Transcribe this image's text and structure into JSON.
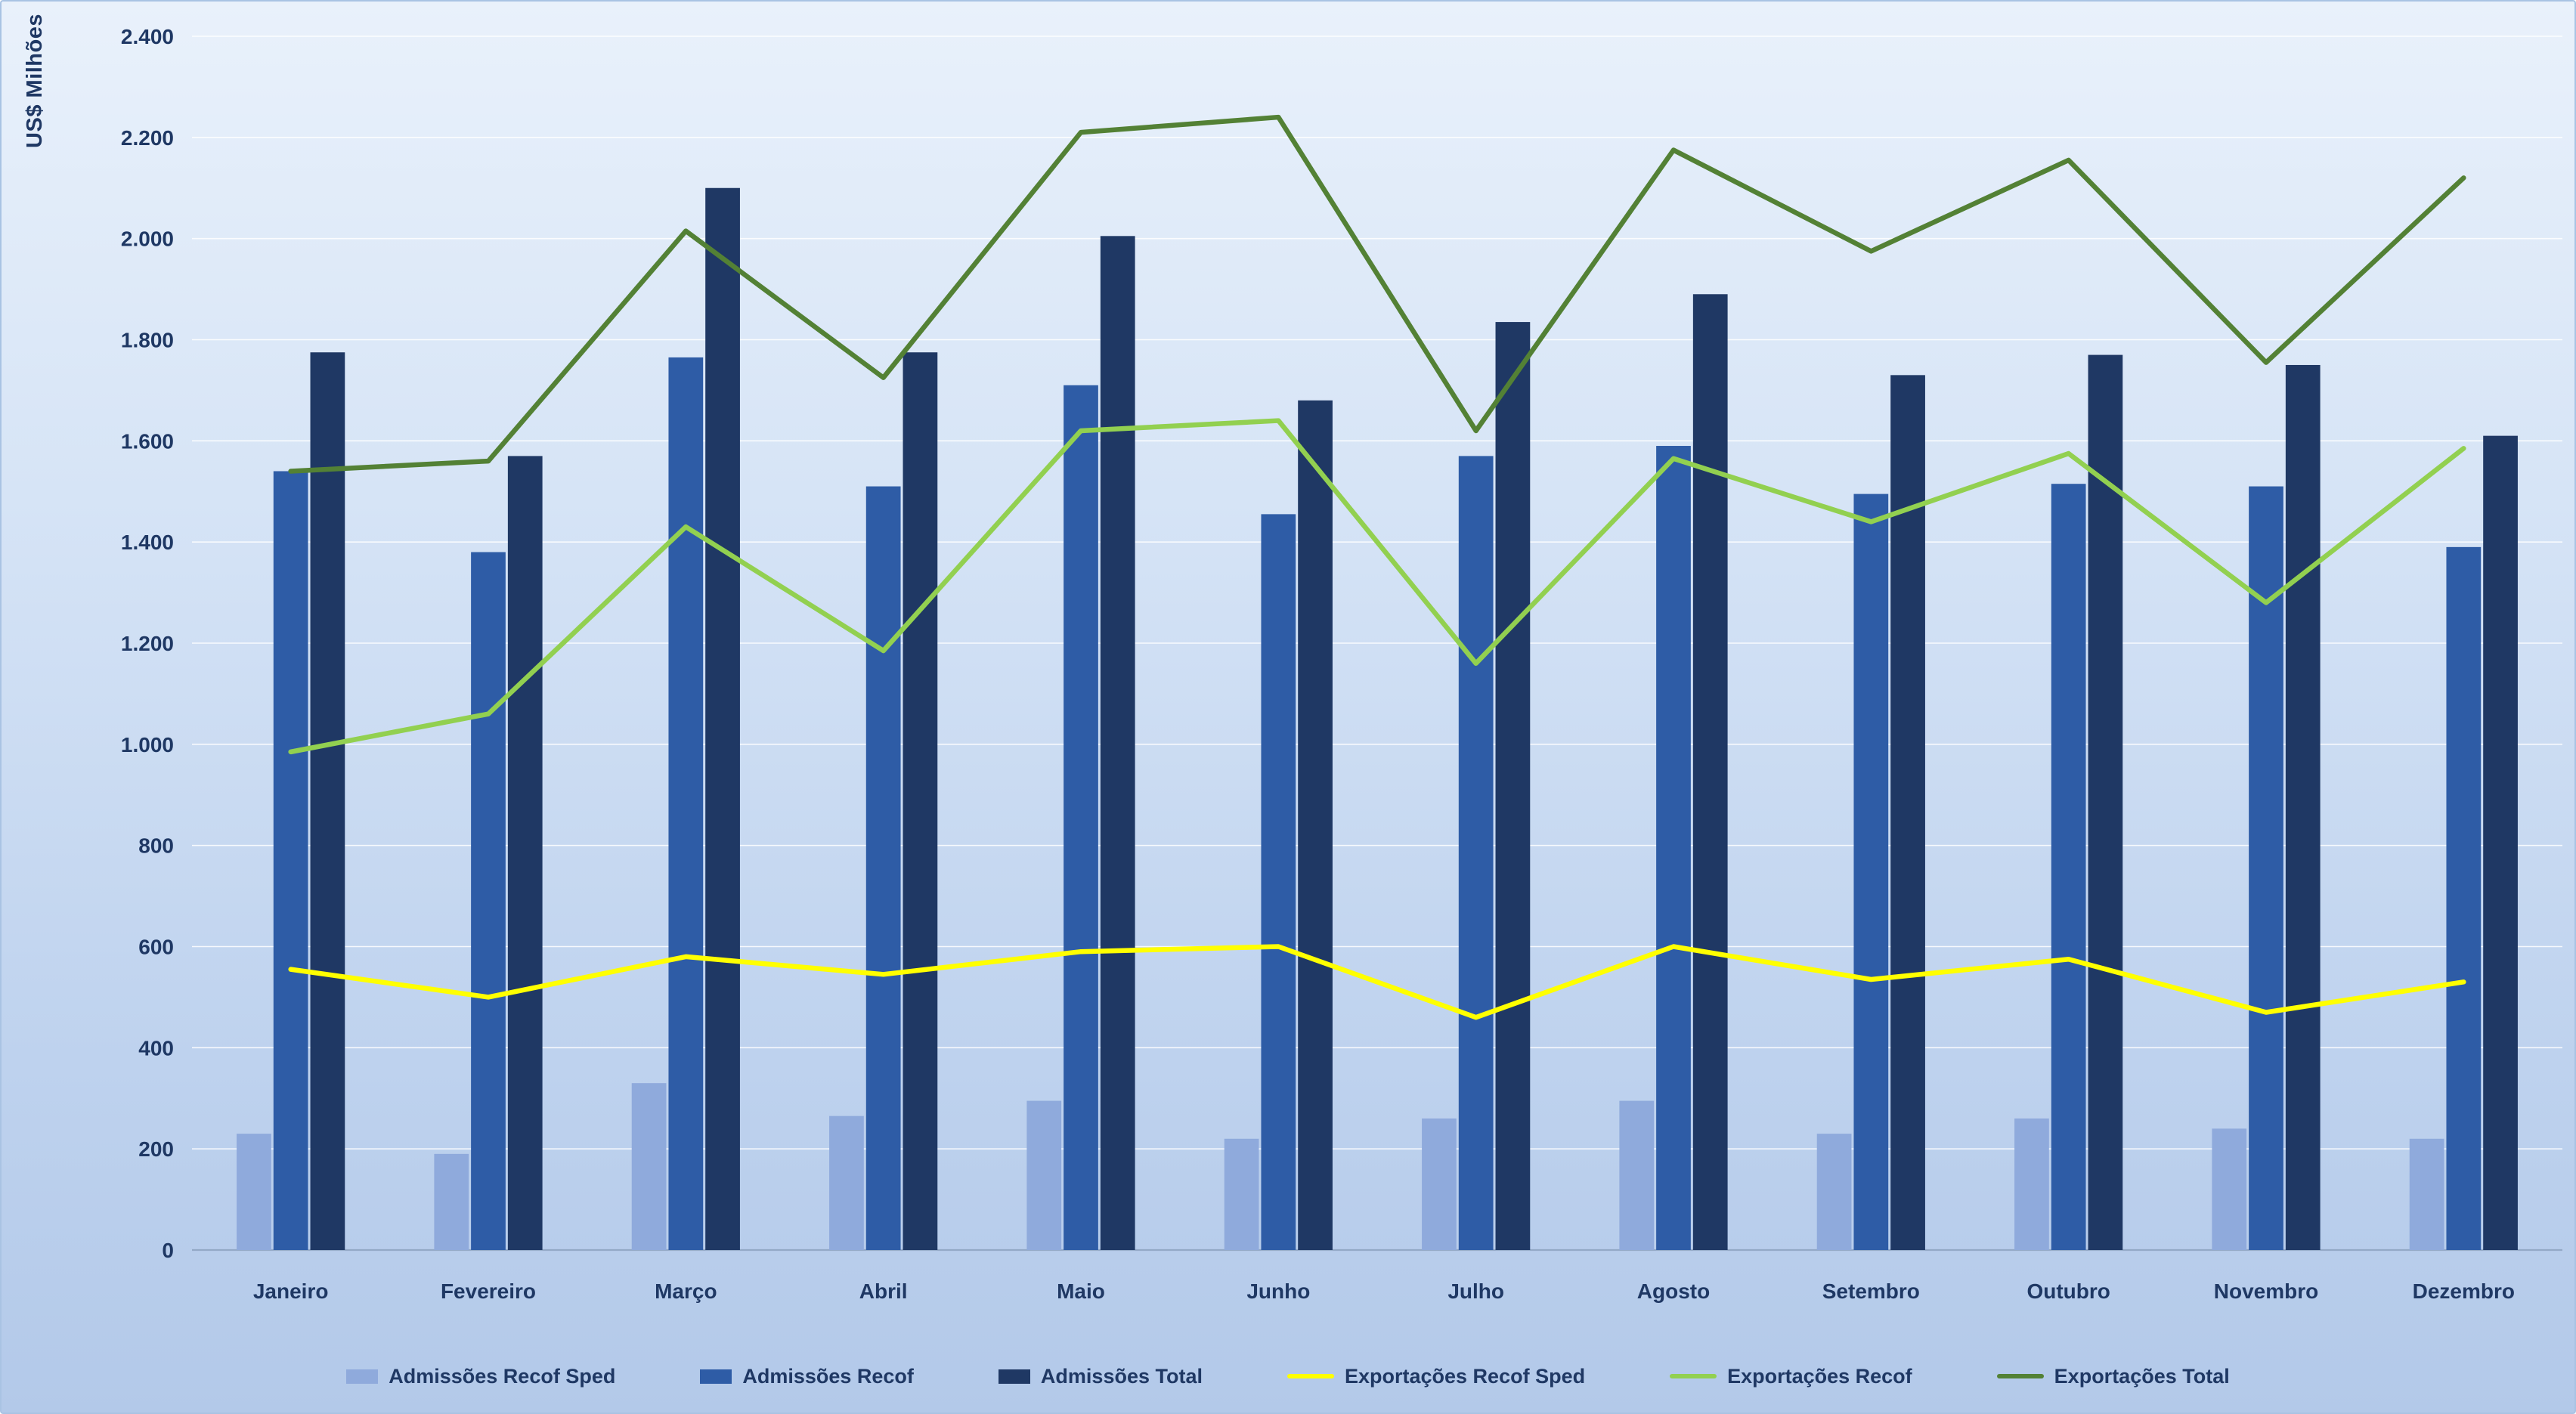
{
  "chart_data": {
    "type": "bar+line",
    "title": "",
    "xlabel": "",
    "ylabel": "US$ Milhões",
    "grid": true,
    "legend_position": "bottom",
    "categories": [
      "Janeiro",
      "Fevereiro",
      "Março",
      "Abril",
      "Maio",
      "Junho",
      "Julho",
      "Agosto",
      "Setembro",
      "Outubro",
      "Novembro",
      "Dezembro"
    ],
    "y_axis": {
      "min": 0,
      "max": 2400,
      "tick_step": 200,
      "tick_labels": [
        "0",
        "200",
        "400",
        "600",
        "800",
        "1.000",
        "1.200",
        "1.400",
        "1.600",
        "1.800",
        "2.000",
        "2.200",
        "2.400"
      ]
    },
    "series": [
      {
        "name": "Admissões Recof Sped",
        "key": "admissoes-recof-sped",
        "type": "bar",
        "color": "#8faadc",
        "values": [
          230,
          190,
          330,
          265,
          295,
          220,
          260,
          295,
          230,
          260,
          240,
          220
        ]
      },
      {
        "name": "Admissões Recof",
        "key": "admissoes-recof",
        "type": "bar",
        "color": "#2e5ca6",
        "values": [
          1540,
          1380,
          1765,
          1510,
          1710,
          1455,
          1570,
          1590,
          1495,
          1515,
          1510,
          1390
        ]
      },
      {
        "name": "Admissões Total",
        "key": "admissoes-total",
        "type": "bar",
        "color": "#1f3864",
        "values": [
          1775,
          1570,
          2100,
          1775,
          2005,
          1680,
          1835,
          1890,
          1730,
          1770,
          1750,
          1610
        ]
      },
      {
        "name": "Exportações Recof Sped",
        "key": "exportacoes-recof-sped",
        "type": "line",
        "color": "#ffff00",
        "values": [
          555,
          500,
          580,
          545,
          590,
          600,
          460,
          600,
          535,
          575,
          470,
          530
        ]
      },
      {
        "name": "Exportações Recof",
        "key": "exportacoes-recof",
        "type": "line",
        "color": "#92d050",
        "values": [
          985,
          1060,
          1430,
          1185,
          1620,
          1640,
          1160,
          1565,
          1440,
          1575,
          1280,
          1585
        ]
      },
      {
        "name": "Exportações Total",
        "key": "exportacoes-total",
        "type": "line",
        "color": "#538135",
        "values": [
          1540,
          1560,
          2015,
          1725,
          2210,
          2240,
          1620,
          2175,
          1975,
          2155,
          1755,
          2120
        ]
      }
    ]
  }
}
